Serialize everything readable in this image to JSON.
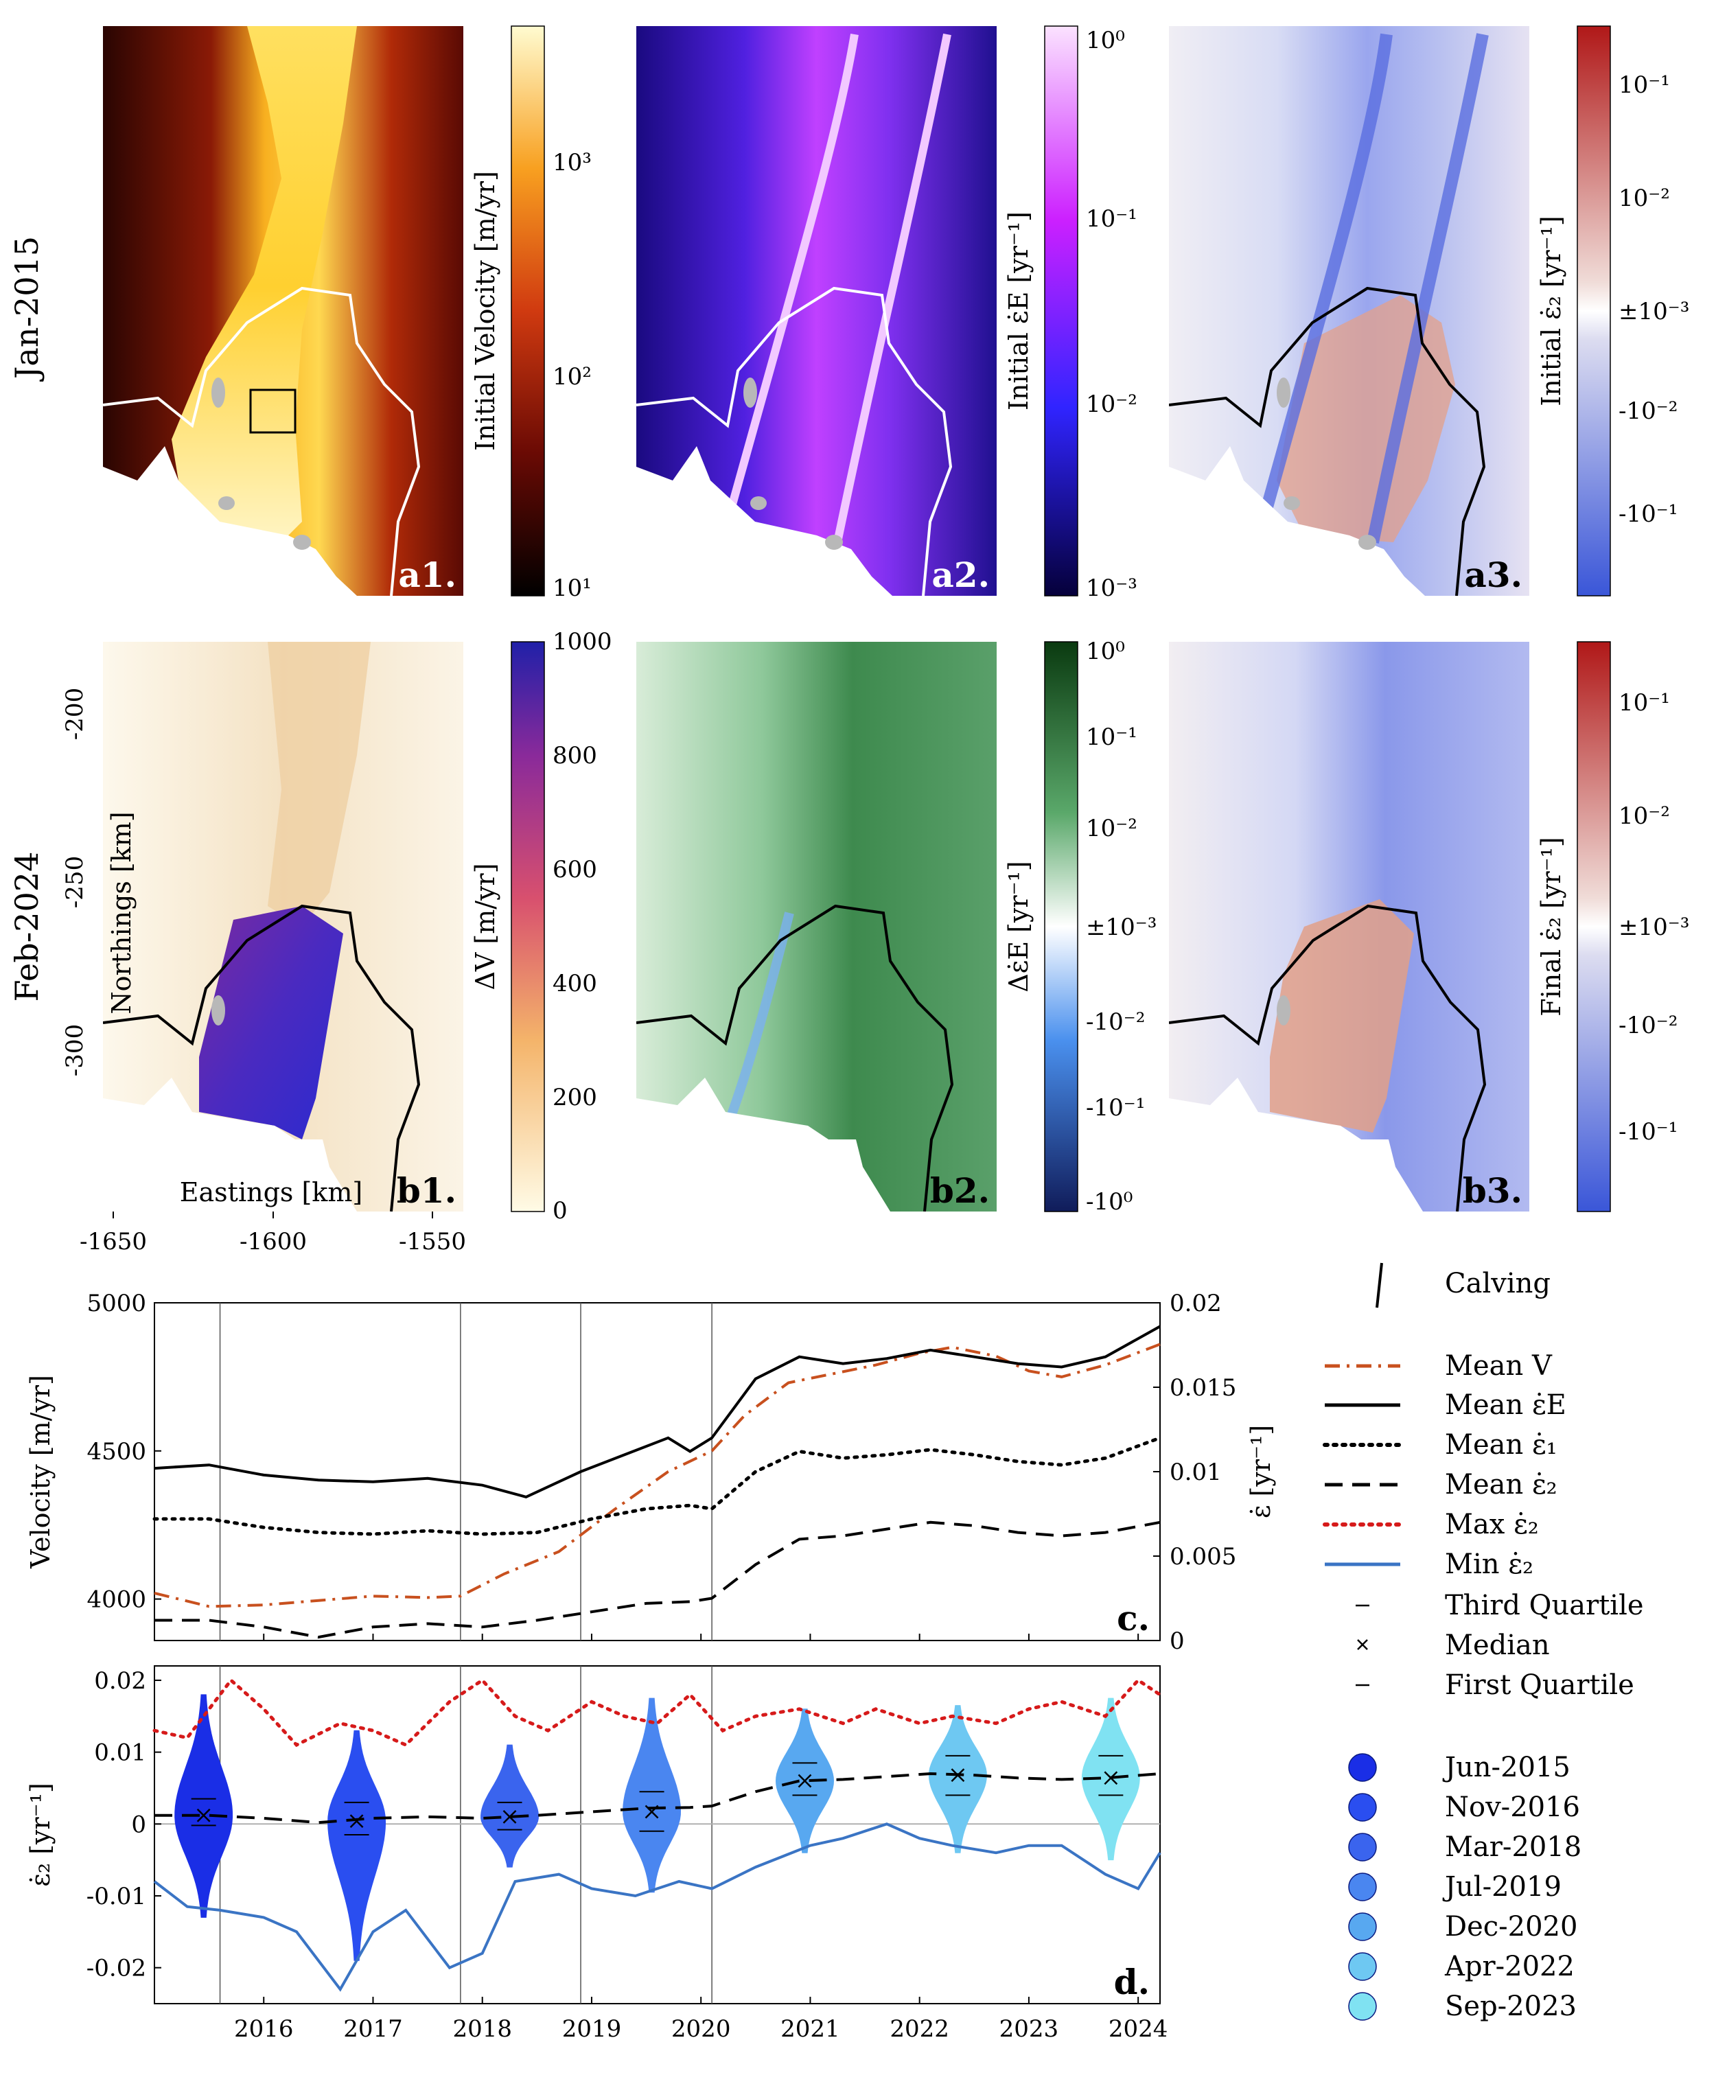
{
  "rows": {
    "top": "Jan-2015",
    "bottom": "Feb-2024"
  },
  "panels": {
    "a1": {
      "label": "a1.",
      "cbar_label": "Initial Velocity [m/yr]",
      "ticks": [
        "10¹",
        "10²",
        "10³"
      ],
      "scale": "log",
      "range": [
        10,
        5000
      ]
    },
    "a2": {
      "label": "a2.",
      "cbar_label": "Initial ε̇E [yr⁻¹]",
      "ticks": [
        "10⁻³",
        "10⁻²",
        "10⁻¹",
        "10⁰"
      ],
      "scale": "log",
      "range": [
        0.001,
        1
      ]
    },
    "a3": {
      "label": "a3.",
      "cbar_label": "Initial ε̇₂ [yr⁻¹]",
      "ticks": [
        "10⁻¹",
        "10⁻²",
        "±10⁻³",
        "-10⁻²",
        "-10⁻¹"
      ],
      "scale": "symlog"
    },
    "b1": {
      "label": "b1.",
      "cbar_label": "ΔV [m/yr]",
      "ticks": [
        "0",
        "200",
        "400",
        "600",
        "800",
        "1000"
      ],
      "scale": "linear",
      "range": [
        0,
        1000
      ]
    },
    "b2": {
      "label": "b2.",
      "cbar_label": "Δε̇E [yr⁻¹]",
      "ticks": [
        "10⁰",
        "10⁻¹",
        "10⁻²",
        "±10⁻³",
        "-10⁻²",
        "-10⁻¹",
        "-10⁰"
      ],
      "scale": "symlog"
    },
    "b3": {
      "label": "b3.",
      "cbar_label": "Final ε̇₂ [yr⁻¹]",
      "ticks": [
        "10⁻¹",
        "10⁻²",
        "±10⁻³",
        "-10⁻²",
        "-10⁻¹"
      ],
      "scale": "symlog"
    }
  },
  "map_axes": {
    "xlabel": "Eastings [km]",
    "ylabel": "Northings [km]",
    "x_ticks": [
      "-1650",
      "-1600",
      "-1550"
    ],
    "y_ticks": [
      "-200",
      "-250",
      "-300"
    ]
  },
  "chart_data": [
    {
      "type": "line",
      "panel": "c.",
      "ylabel": "Velocity [m/yr]",
      "ylabel_right": "ε̇ [yr⁻¹]",
      "xlim": [
        2015.0,
        2024.2
      ],
      "ylim": [
        3860,
        5000
      ],
      "ylim_right": [
        0,
        0.02
      ],
      "y_ticks": [
        "4000",
        "4500",
        "5000"
      ],
      "y_ticks_right": [
        "0",
        "0.005",
        "0.01",
        "0.015",
        "0.02"
      ],
      "calving_dates": [
        2015.6,
        2017.8,
        2018.9,
        2020.1
      ],
      "series": [
        {
          "name": "Mean V",
          "axis": "left",
          "color": "#c8501e",
          "dash": "dashdot",
          "x": [
            2015.0,
            2015.5,
            2016.0,
            2016.5,
            2017.0,
            2017.5,
            2017.8,
            2018.2,
            2018.7,
            2019.2,
            2019.7,
            2020.1,
            2020.4,
            2020.8,
            2021.2,
            2021.6,
            2022.0,
            2022.3,
            2022.7,
            2023.0,
            2023.3,
            2023.7,
            2024.2
          ],
          "y": [
            4020,
            3975,
            3980,
            3995,
            4010,
            4005,
            4010,
            4085,
            4160,
            4300,
            4430,
            4500,
            4620,
            4730,
            4760,
            4790,
            4830,
            4850,
            4820,
            4770,
            4750,
            4790,
            4860
          ]
        },
        {
          "name": "Mean ε̇E",
          "axis": "right",
          "color": "#000000",
          "dash": "solid",
          "x": [
            2015.0,
            2015.5,
            2016.0,
            2016.5,
            2017.0,
            2017.5,
            2018.0,
            2018.4,
            2018.9,
            2019.3,
            2019.7,
            2019.9,
            2020.1,
            2020.5,
            2020.9,
            2021.3,
            2021.7,
            2022.1,
            2022.5,
            2022.9,
            2023.3,
            2023.7,
            2024.2
          ],
          "y": [
            0.0102,
            0.0104,
            0.0098,
            0.0095,
            0.0094,
            0.0096,
            0.0092,
            0.0085,
            0.01,
            0.011,
            0.012,
            0.0112,
            0.012,
            0.0155,
            0.0168,
            0.0164,
            0.0167,
            0.0172,
            0.0168,
            0.0164,
            0.0162,
            0.0168,
            0.0186
          ]
        },
        {
          "name": "Mean ε̇₁",
          "axis": "right",
          "color": "#000000",
          "dash": "dotted",
          "x": [
            2015.0,
            2015.5,
            2016.0,
            2016.5,
            2017.0,
            2017.5,
            2018.0,
            2018.5,
            2019.0,
            2019.5,
            2019.9,
            2020.1,
            2020.5,
            2020.9,
            2021.3,
            2021.7,
            2022.1,
            2022.5,
            2022.9,
            2023.3,
            2023.7,
            2024.2
          ],
          "y": [
            0.0072,
            0.0072,
            0.0067,
            0.0064,
            0.0063,
            0.0065,
            0.0063,
            0.0064,
            0.0072,
            0.0078,
            0.008,
            0.0078,
            0.01,
            0.0112,
            0.0108,
            0.011,
            0.0113,
            0.011,
            0.0106,
            0.0104,
            0.0108,
            0.012
          ]
        },
        {
          "name": "Mean ε̇₂",
          "axis": "right",
          "color": "#000000",
          "dash": "dashed",
          "x": [
            2015.0,
            2015.5,
            2016.0,
            2016.5,
            2017.0,
            2017.5,
            2018.0,
            2018.5,
            2019.0,
            2019.5,
            2019.9,
            2020.1,
            2020.5,
            2020.9,
            2021.3,
            2021.7,
            2022.1,
            2022.5,
            2022.9,
            2023.3,
            2023.7,
            2024.2
          ],
          "y": [
            0.0012,
            0.0012,
            0.0008,
            0.0002,
            0.0008,
            0.001,
            0.0008,
            0.0012,
            0.0017,
            0.0022,
            0.0023,
            0.0025,
            0.0045,
            0.006,
            0.0062,
            0.0066,
            0.007,
            0.0068,
            0.0064,
            0.0062,
            0.0064,
            0.007
          ]
        }
      ]
    },
    {
      "type": "violin",
      "panel": "d.",
      "ylabel": "ε̇₂ [yr⁻¹]",
      "xlim": [
        2015.0,
        2024.2
      ],
      "ylim": [
        -0.025,
        0.022
      ],
      "x_ticks": [
        "2016",
        "2017",
        "2018",
        "2019",
        "2020",
        "2021",
        "2022",
        "2023",
        "2024"
      ],
      "y_ticks": [
        "-0.02",
        "-0.01",
        "0",
        "0.01",
        "0.02"
      ],
      "calving_dates": [
        2015.6,
        2017.8,
        2018.9,
        2020.1
      ],
      "series": [
        {
          "name": "Max ε̇₂",
          "color": "#d61a1a",
          "dash": "dotted",
          "x": [
            2015.0,
            2015.3,
            2015.7,
            2016.0,
            2016.3,
            2016.7,
            2017.0,
            2017.3,
            2017.7,
            2018.0,
            2018.3,
            2018.6,
            2019.0,
            2019.3,
            2019.6,
            2019.9,
            2020.2,
            2020.5,
            2020.9,
            2021.3,
            2021.6,
            2022.0,
            2022.3,
            2022.7,
            2023.0,
            2023.3,
            2023.7,
            2024.0,
            2024.2
          ],
          "y": [
            0.013,
            0.012,
            0.02,
            0.016,
            0.011,
            0.014,
            0.013,
            0.011,
            0.017,
            0.02,
            0.015,
            0.013,
            0.017,
            0.015,
            0.014,
            0.018,
            0.013,
            0.015,
            0.016,
            0.014,
            0.016,
            0.014,
            0.015,
            0.014,
            0.016,
            0.017,
            0.015,
            0.02,
            0.018
          ]
        },
        {
          "name": "Min ε̇₂",
          "color": "#3a74c4",
          "dash": "solid",
          "x": [
            2015.0,
            2015.3,
            2015.6,
            2016.0,
            2016.3,
            2016.7,
            2017.0,
            2017.3,
            2017.7,
            2018.0,
            2018.3,
            2018.7,
            2019.0,
            2019.4,
            2019.8,
            2020.1,
            2020.5,
            2021.0,
            2021.3,
            2021.7,
            2022.0,
            2022.3,
            2022.7,
            2023.0,
            2023.3,
            2023.7,
            2024.0,
            2024.2
          ],
          "y": [
            -0.008,
            -0.0115,
            -0.012,
            -0.013,
            -0.015,
            -0.023,
            -0.015,
            -0.012,
            -0.02,
            -0.018,
            -0.008,
            -0.007,
            -0.009,
            -0.01,
            -0.008,
            -0.009,
            -0.006,
            -0.003,
            -0.002,
            0.0,
            -0.002,
            -0.003,
            -0.004,
            -0.003,
            -0.003,
            -0.007,
            -0.009,
            -0.004
          ]
        }
      ],
      "violins": [
        {
          "name": "Jun-2015",
          "x": 2015.45,
          "color": "#1a2ee6",
          "median": 0.0012,
          "q1": -0.0002,
          "q3": 0.0035,
          "min": -0.013,
          "max": 0.018
        },
        {
          "name": "Nov-2016",
          "x": 2016.85,
          "color": "#2a4ef0",
          "median": 0.0004,
          "q1": -0.0015,
          "q3": 0.003,
          "min": -0.019,
          "max": 0.013
        },
        {
          "name": "Mar-2018",
          "x": 2018.25,
          "color": "#3a64ee",
          "median": 0.001,
          "q1": -0.0008,
          "q3": 0.003,
          "min": -0.006,
          "max": 0.011
        },
        {
          "name": "Jul-2019",
          "x": 2019.55,
          "color": "#4a86f0",
          "median": 0.0017,
          "q1": -0.001,
          "q3": 0.0045,
          "min": -0.0095,
          "max": 0.0175
        },
        {
          "name": "Dec-2020",
          "x": 2020.95,
          "color": "#58a8f0",
          "median": 0.006,
          "q1": 0.004,
          "q3": 0.0085,
          "min": -0.004,
          "max": 0.016
        },
        {
          "name": "Apr-2022",
          "x": 2022.35,
          "color": "#6ec8f2",
          "median": 0.0068,
          "q1": 0.004,
          "q3": 0.0095,
          "min": -0.004,
          "max": 0.0165
        },
        {
          "name": "Sep-2023",
          "x": 2023.75,
          "color": "#80e2f2",
          "median": 0.0064,
          "q1": 0.004,
          "q3": 0.0095,
          "min": -0.005,
          "max": 0.0175
        }
      ]
    }
  ],
  "legend": {
    "calving": "Calving",
    "third_quartile": "Third Quartile",
    "median": "Median",
    "first_quartile": "First Quartile"
  }
}
